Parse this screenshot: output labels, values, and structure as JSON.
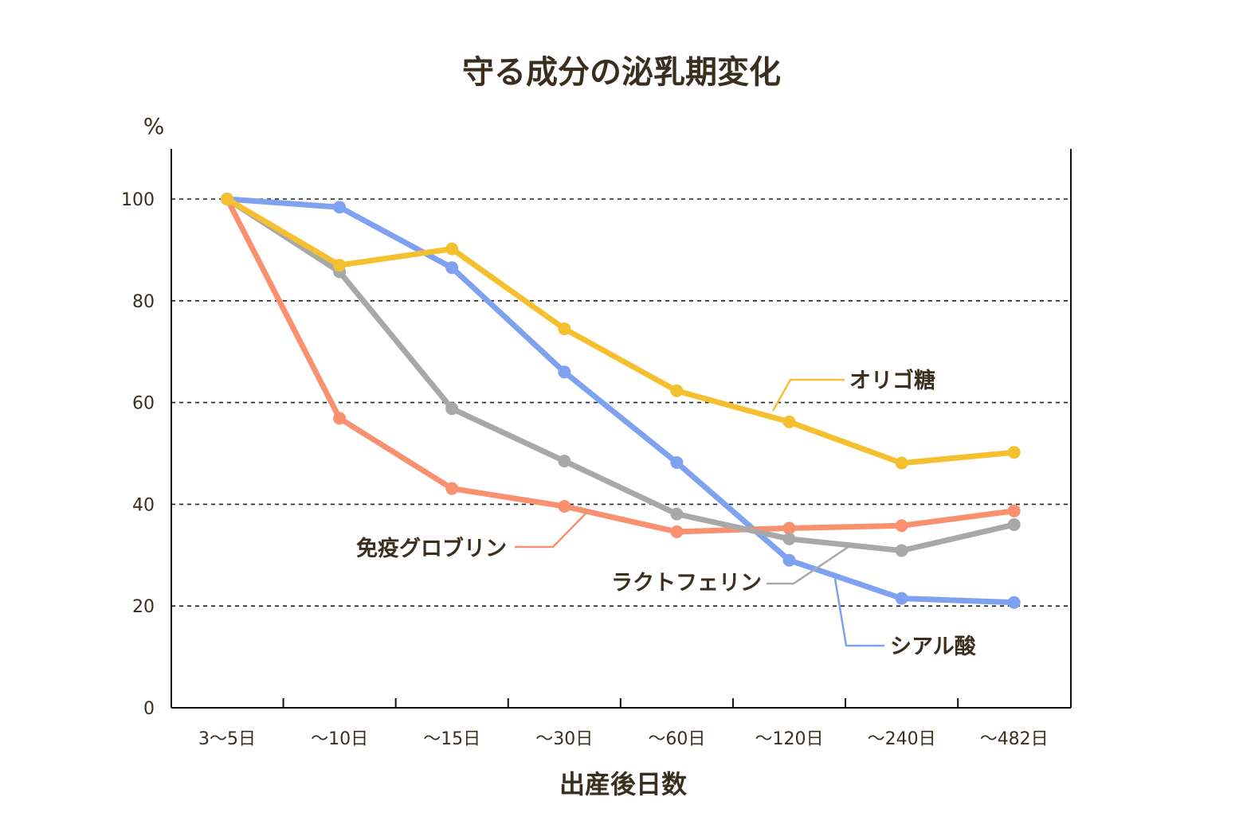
{
  "chart_data": {
    "type": "line",
    "title": "守る成分の泌乳期変化",
    "ylabel": "%",
    "xlabel": "出産後日数",
    "categories": [
      "3〜5日",
      "〜10日",
      "〜15日",
      "〜30日",
      "〜60日",
      "〜120日",
      "〜240日",
      "〜482日"
    ],
    "ylim": [
      0,
      100
    ],
    "yticks": [
      0,
      20,
      40,
      60,
      80,
      100
    ],
    "grid": "dashed horizontal",
    "series": [
      {
        "name": "オリゴ糖",
        "color": "#f4c030",
        "values": [
          100,
          87,
          90.2,
          74.5,
          62.3,
          56.2,
          48.1,
          50.2
        ]
      },
      {
        "name": "シアル酸",
        "color": "#7ea1f0",
        "values": [
          100,
          98.4,
          86.5,
          66,
          48.2,
          29,
          21.5,
          20.7
        ]
      },
      {
        "name": "ラクトフェリン",
        "color": "#a8a8a8",
        "values": [
          100,
          85.7,
          58.8,
          48.5,
          38.1,
          33.2,
          30.9,
          36
        ]
      },
      {
        "name": "免疫グロブリン",
        "color": "#f99070",
        "values": [
          100,
          56.9,
          43.1,
          39.6,
          34.6,
          35.3,
          35.8,
          38.7
        ]
      }
    ]
  }
}
